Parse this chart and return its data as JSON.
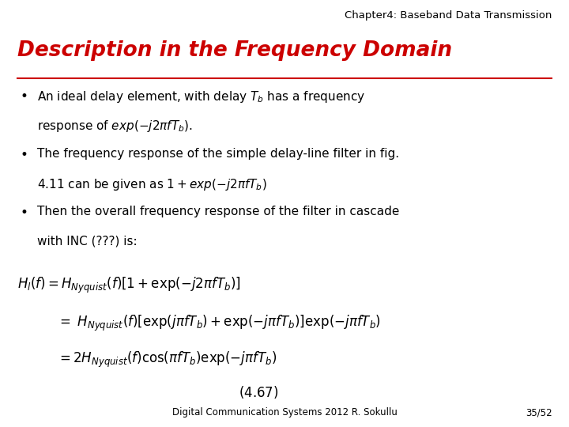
{
  "background_color": "#ffffff",
  "header_text": "Chapter4: Baseband Data Transmission",
  "header_fontsize": 9.5,
  "header_color": "#000000",
  "title_text": "Description in the Frequency Domain",
  "title_fontsize": 19,
  "title_color": "#cc0000",
  "footer_center": "Digital Communication Systems 2012 R. Sokullu",
  "footer_right": "35/52",
  "footer_fontsize": 8.5,
  "bullet_fontsize": 11,
  "eq_fontsize": 12
}
